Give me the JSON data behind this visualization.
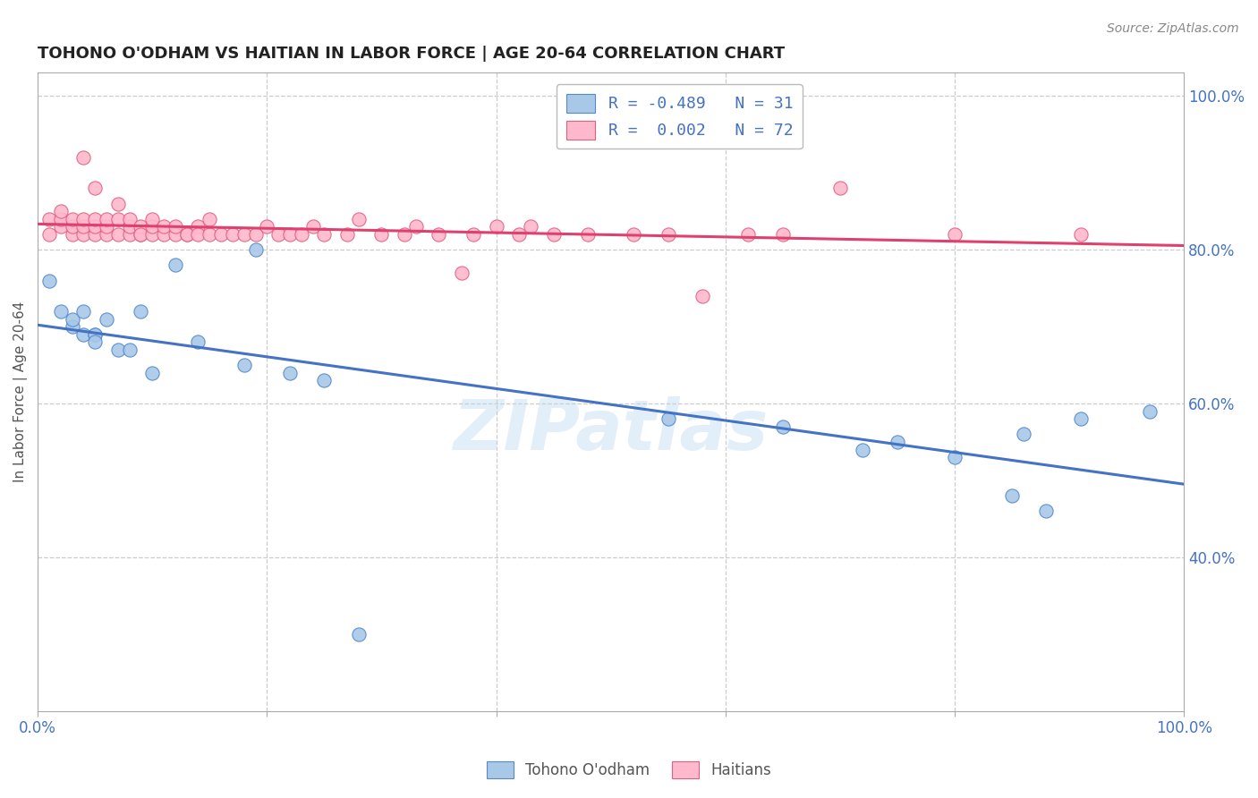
{
  "title": "TOHONO O'ODHAM VS HAITIAN IN LABOR FORCE | AGE 20-64 CORRELATION CHART",
  "source": "Source: ZipAtlas.com",
  "ylabel": "In Labor Force | Age 20-64",
  "x_min": 0.0,
  "x_max": 1.0,
  "y_min": 0.2,
  "y_max": 1.03,
  "x_ticks": [
    0.0,
    0.2,
    0.4,
    0.6,
    0.8,
    1.0
  ],
  "x_tick_labels": [
    "0.0%",
    "",
    "",
    "",
    "",
    "100.0%"
  ],
  "y_tick_labels_right": [
    "40.0%",
    "60.0%",
    "80.0%",
    "100.0%"
  ],
  "y_tick_vals_right": [
    0.4,
    0.6,
    0.8,
    1.0
  ],
  "legend_blue_label": "R = -0.489   N = 31",
  "legend_pink_label": "R =  0.002   N = 72",
  "legend_bottom_labels": [
    "Tohono O'odham",
    "Haitians"
  ],
  "blue_color": "#A8C8E8",
  "pink_color": "#FFB8CC",
  "blue_edge_color": "#5588CC",
  "pink_edge_color": "#E06080",
  "blue_line_color": "#4472C4",
  "pink_line_color": "#E04070",
  "watermark": "ZIPatlas",
  "background_color": "#FFFFFF",
  "grid_color": "#CCCCCC",
  "blue_scatter_x": [
    0.01,
    0.02,
    0.03,
    0.03,
    0.04,
    0.04,
    0.05,
    0.05,
    0.05,
    0.06,
    0.07,
    0.08,
    0.09,
    0.1,
    0.12,
    0.14,
    0.18,
    0.19,
    0.22,
    0.25,
    0.28,
    0.55,
    0.65,
    0.72,
    0.75,
    0.8,
    0.85,
    0.86,
    0.88,
    0.91,
    0.97
  ],
  "blue_scatter_y": [
    0.76,
    0.72,
    0.7,
    0.71,
    0.72,
    0.69,
    0.69,
    0.69,
    0.68,
    0.71,
    0.67,
    0.67,
    0.72,
    0.64,
    0.78,
    0.68,
    0.65,
    0.8,
    0.64,
    0.63,
    0.3,
    0.58,
    0.57,
    0.54,
    0.55,
    0.53,
    0.48,
    0.56,
    0.46,
    0.58,
    0.59
  ],
  "pink_scatter_x": [
    0.01,
    0.01,
    0.02,
    0.02,
    0.02,
    0.03,
    0.03,
    0.03,
    0.04,
    0.04,
    0.04,
    0.04,
    0.05,
    0.05,
    0.05,
    0.05,
    0.06,
    0.06,
    0.06,
    0.07,
    0.07,
    0.07,
    0.08,
    0.08,
    0.08,
    0.09,
    0.09,
    0.09,
    0.1,
    0.1,
    0.1,
    0.11,
    0.11,
    0.12,
    0.12,
    0.13,
    0.13,
    0.14,
    0.14,
    0.15,
    0.15,
    0.16,
    0.17,
    0.18,
    0.19,
    0.2,
    0.21,
    0.22,
    0.23,
    0.24,
    0.25,
    0.27,
    0.28,
    0.3,
    0.32,
    0.33,
    0.35,
    0.37,
    0.38,
    0.4,
    0.42,
    0.43,
    0.45,
    0.48,
    0.52,
    0.55,
    0.58,
    0.62,
    0.65,
    0.7,
    0.8,
    0.91
  ],
  "pink_scatter_y": [
    0.82,
    0.84,
    0.83,
    0.84,
    0.85,
    0.82,
    0.83,
    0.84,
    0.82,
    0.83,
    0.84,
    0.92,
    0.82,
    0.83,
    0.84,
    0.88,
    0.82,
    0.83,
    0.84,
    0.82,
    0.84,
    0.86,
    0.82,
    0.83,
    0.84,
    0.82,
    0.83,
    0.82,
    0.82,
    0.83,
    0.84,
    0.82,
    0.83,
    0.82,
    0.83,
    0.82,
    0.82,
    0.83,
    0.82,
    0.84,
    0.82,
    0.82,
    0.82,
    0.82,
    0.82,
    0.83,
    0.82,
    0.82,
    0.82,
    0.83,
    0.82,
    0.82,
    0.84,
    0.82,
    0.82,
    0.83,
    0.82,
    0.77,
    0.82,
    0.83,
    0.82,
    0.83,
    0.82,
    0.82,
    0.82,
    0.82,
    0.74,
    0.82,
    0.82,
    0.88,
    0.82,
    0.82
  ]
}
